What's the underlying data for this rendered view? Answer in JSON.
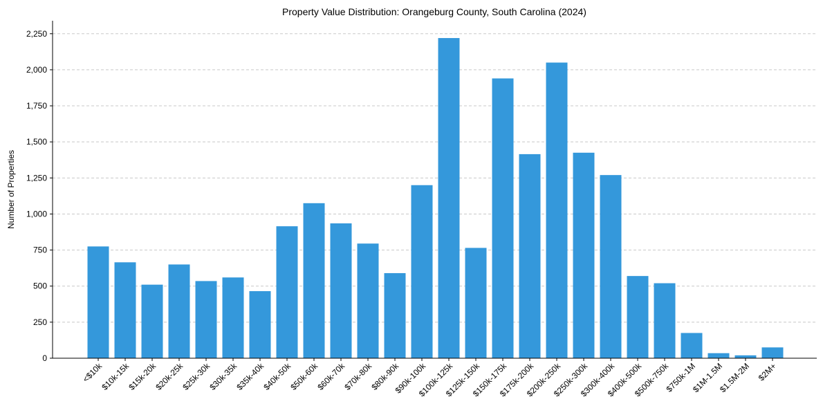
{
  "chart_data": {
    "type": "bar",
    "title": "Property Value Distribution: Orangeburg County, South Carolina (2024)",
    "xlabel": "",
    "ylabel": "Number of Properties",
    "ylim": [
      0,
      2340
    ],
    "yticks": [
      0,
      250,
      500,
      750,
      1000,
      1250,
      1500,
      1750,
      2000,
      2250
    ],
    "ytick_labels": [
      "0",
      "250",
      "500",
      "750",
      "1,000",
      "1,250",
      "1,500",
      "1,750",
      "2,000",
      "2,250"
    ],
    "grid": "y-dashed",
    "bar_color": "#3498db",
    "categories": [
      "<$10k",
      "$10k-15k",
      "$15k-20k",
      "$20k-25k",
      "$25k-30k",
      "$30k-35k",
      "$35k-40k",
      "$40k-50k",
      "$50k-60k",
      "$60k-70k",
      "$70k-80k",
      "$80k-90k",
      "$90k-100k",
      "$100k-125k",
      "$125k-150k",
      "$150k-175k",
      "$175k-200k",
      "$200k-250k",
      "$250k-300k",
      "$300k-400k",
      "$400k-500k",
      "$500k-750k",
      "$750k-1M",
      "$1M-1.5M",
      "$1.5M-2M",
      "$2M+"
    ],
    "values": [
      775,
      665,
      510,
      650,
      535,
      560,
      465,
      915,
      1075,
      935,
      795,
      590,
      1200,
      2220,
      765,
      1940,
      1415,
      2050,
      1425,
      1270,
      570,
      520,
      175,
      35,
      20,
      75
    ]
  }
}
